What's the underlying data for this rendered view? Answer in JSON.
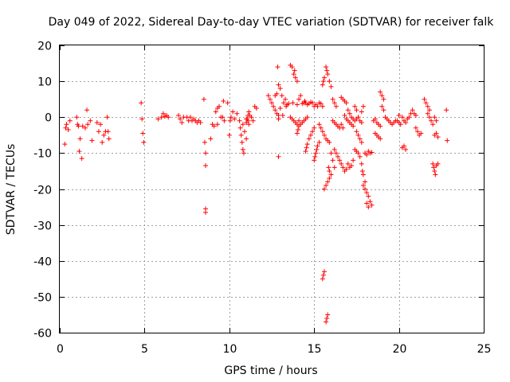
{
  "chart_data": {
    "type": "scatter",
    "title": "Day 049 of 2022, Sidereal Day-to-day VTEC variation (SDTVAR) for receiver falk",
    "xlabel": "GPS time / hours",
    "ylabel": "SDTVAR / TECUs",
    "xlim": [
      0,
      25
    ],
    "ylim": [
      -60,
      20
    ],
    "xticks": [
      0,
      5,
      10,
      15,
      20,
      25
    ],
    "yticks": [
      20,
      10,
      0,
      -10,
      -20,
      -30,
      -40,
      -50,
      -60
    ],
    "grid": true,
    "marker": "+",
    "color": "#ff0000",
    "scatter_points": [
      [
        0.3,
        -7.5
      ],
      [
        0.35,
        -3
      ],
      [
        0.4,
        -2
      ],
      [
        0.5,
        -3.5
      ],
      [
        0.6,
        -1
      ],
      [
        1.0,
        0
      ],
      [
        1.05,
        -2
      ],
      [
        1.1,
        -2.5
      ],
      [
        1.15,
        -9.5
      ],
      [
        1.2,
        -6
      ],
      [
        1.3,
        -11.5
      ],
      [
        1.35,
        -2.5
      ],
      [
        1.5,
        -3
      ],
      [
        1.6,
        2
      ],
      [
        1.65,
        -2
      ],
      [
        1.8,
        -1
      ],
      [
        1.9,
        -6.5
      ],
      [
        2.2,
        -1.5
      ],
      [
        2.3,
        -4
      ],
      [
        2.4,
        -2
      ],
      [
        2.5,
        -7
      ],
      [
        2.6,
        -5
      ],
      [
        2.7,
        -4
      ],
      [
        2.8,
        0
      ],
      [
        2.85,
        -4
      ],
      [
        2.9,
        -6
      ],
      [
        4.8,
        4
      ],
      [
        4.85,
        -0.5
      ],
      [
        4.9,
        -4.5
      ],
      [
        4.95,
        -7
      ],
      [
        5.8,
        -0.5
      ],
      [
        6.0,
        0
      ],
      [
        6.1,
        1
      ],
      [
        6.2,
        0.2
      ],
      [
        6.3,
        0.5
      ],
      [
        6.4,
        0
      ],
      [
        7.0,
        0.5
      ],
      [
        7.1,
        -0.5
      ],
      [
        7.2,
        -1.5
      ],
      [
        7.3,
        0
      ],
      [
        7.5,
        0
      ],
      [
        7.6,
        -1
      ],
      [
        7.7,
        0
      ],
      [
        7.8,
        -1
      ],
      [
        7.9,
        -0.5
      ],
      [
        8.0,
        -1
      ],
      [
        8.1,
        -1.5
      ],
      [
        8.2,
        -1
      ],
      [
        8.3,
        -1.5
      ],
      [
        8.5,
        5
      ],
      [
        8.55,
        -7
      ],
      [
        8.6,
        -10
      ],
      [
        8.6,
        -13.5
      ],
      [
        8.6,
        -25.5
      ],
      [
        8.6,
        -26.5
      ],
      [
        8.9,
        -6
      ],
      [
        9.0,
        -2
      ],
      [
        9.1,
        -2.5
      ],
      [
        9.2,
        1.5
      ],
      [
        9.3,
        2.5
      ],
      [
        9.3,
        -2
      ],
      [
        9.4,
        3
      ],
      [
        9.5,
        0
      ],
      [
        9.6,
        0
      ],
      [
        9.65,
        4.5
      ],
      [
        9.7,
        -1
      ],
      [
        9.9,
        4
      ],
      [
        10.0,
        -5
      ],
      [
        10.05,
        -1
      ],
      [
        10.1,
        0
      ],
      [
        10.2,
        1.5
      ],
      [
        10.3,
        -0.5
      ],
      [
        10.45,
        1
      ],
      [
        10.6,
        -1
      ],
      [
        10.65,
        -3
      ],
      [
        10.7,
        -5
      ],
      [
        10.75,
        -7
      ],
      [
        10.8,
        -9
      ],
      [
        10.85,
        -10
      ],
      [
        10.8,
        -2
      ],
      [
        10.9,
        -4
      ],
      [
        11.0,
        -6
      ],
      [
        11.0,
        -0.5
      ],
      [
        11.1,
        -1
      ],
      [
        11.15,
        -2
      ],
      [
        11.2,
        0.5
      ],
      [
        11.3,
        0
      ],
      [
        11.4,
        -1
      ],
      [
        11.5,
        3
      ],
      [
        11.6,
        2.5
      ],
      [
        11.0,
        -1.5
      ],
      [
        11.05,
        -0.5
      ],
      [
        11.1,
        0.5
      ],
      [
        11.15,
        1.5
      ],
      [
        12.3,
        6
      ],
      [
        12.4,
        5
      ],
      [
        12.5,
        4
      ],
      [
        12.6,
        3
      ],
      [
        12.7,
        2
      ],
      [
        12.8,
        1
      ],
      [
        12.9,
        -0.5
      ],
      [
        12.9,
        0.5
      ],
      [
        12.9,
        -11
      ],
      [
        12.7,
        6
      ],
      [
        12.8,
        6.5
      ],
      [
        12.85,
        14
      ],
      [
        12.9,
        9
      ],
      [
        13.0,
        8
      ],
      [
        13.0,
        2.5
      ],
      [
        13.1,
        6
      ],
      [
        13.15,
        0.5
      ],
      [
        13.2,
        4
      ],
      [
        13.3,
        5
      ],
      [
        13.35,
        3
      ],
      [
        13.4,
        3.5
      ],
      [
        13.5,
        3.8
      ],
      [
        13.6,
        14.5
      ],
      [
        13.7,
        14
      ],
      [
        13.75,
        4
      ],
      [
        13.8,
        12
      ],
      [
        13.85,
        13
      ],
      [
        13.9,
        11
      ],
      [
        14.0,
        10
      ],
      [
        14.0,
        3.5
      ],
      [
        14.1,
        5
      ],
      [
        14.2,
        6
      ],
      [
        14.3,
        3.8
      ],
      [
        14.4,
        4
      ],
      [
        14.45,
        4.5
      ],
      [
        14.5,
        4
      ],
      [
        14.6,
        3.5
      ],
      [
        14.7,
        3.8
      ],
      [
        14.8,
        4.2
      ],
      [
        14.9,
        4
      ],
      [
        15.0,
        3
      ],
      [
        15.1,
        3.5
      ],
      [
        15.2,
        3
      ],
      [
        15.3,
        4
      ],
      [
        15.4,
        3.8
      ],
      [
        15.5,
        3
      ],
      [
        15.3,
        -2
      ],
      [
        15.4,
        -3
      ],
      [
        15.5,
        -4
      ],
      [
        15.6,
        -5
      ],
      [
        15.7,
        -6
      ],
      [
        15.8,
        -6.5
      ],
      [
        15.9,
        -7
      ],
      [
        15.85,
        -14
      ],
      [
        15.9,
        -15
      ],
      [
        16.0,
        -16
      ],
      [
        15.6,
        -20
      ],
      [
        15.7,
        -19
      ],
      [
        15.8,
        -18
      ],
      [
        15.9,
        -17
      ],
      [
        15.5,
        -45
      ],
      [
        15.55,
        -44
      ],
      [
        15.6,
        -43
      ],
      [
        15.7,
        -57
      ],
      [
        15.75,
        -56
      ],
      [
        15.8,
        -55
      ],
      [
        15.5,
        9
      ],
      [
        15.55,
        10
      ],
      [
        15.6,
        11
      ],
      [
        15.7,
        14
      ],
      [
        15.75,
        13
      ],
      [
        15.8,
        12
      ],
      [
        15.9,
        10
      ],
      [
        16.0,
        8.5
      ],
      [
        14.0,
        -4.5
      ],
      [
        14.05,
        -3.5
      ],
      [
        14.1,
        -2.5
      ],
      [
        14.2,
        -2
      ],
      [
        14.3,
        -1.5
      ],
      [
        14.4,
        -1
      ],
      [
        14.5,
        -0.5
      ],
      [
        14.6,
        0
      ],
      [
        14.5,
        -9.5
      ],
      [
        14.55,
        -8.5
      ],
      [
        14.6,
        -7.5
      ],
      [
        14.7,
        -6
      ],
      [
        14.8,
        -5
      ],
      [
        14.9,
        -4
      ],
      [
        15.0,
        -3
      ],
      [
        15.0,
        -12
      ],
      [
        15.05,
        -11
      ],
      [
        15.1,
        -10
      ],
      [
        15.15,
        -9
      ],
      [
        15.2,
        -8
      ],
      [
        15.3,
        -7
      ],
      [
        13.6,
        0
      ],
      [
        13.7,
        -0.5
      ],
      [
        13.8,
        -1
      ],
      [
        13.9,
        -1.5
      ],
      [
        14.0,
        -2
      ],
      [
        14.1,
        -1
      ],
      [
        16.1,
        5
      ],
      [
        16.2,
        4
      ],
      [
        16.3,
        3
      ],
      [
        16.1,
        -1
      ],
      [
        16.2,
        -1.5
      ],
      [
        16.3,
        -2
      ],
      [
        16.4,
        -2.5
      ],
      [
        16.5,
        -3
      ],
      [
        16.6,
        -2
      ],
      [
        16.7,
        -3
      ],
      [
        16.2,
        -9
      ],
      [
        16.3,
        -10
      ],
      [
        16.4,
        -11
      ],
      [
        16.5,
        -12
      ],
      [
        16.6,
        -13
      ],
      [
        16.7,
        -14
      ],
      [
        16.8,
        -15
      ],
      [
        16.9,
        -14.5
      ],
      [
        17.0,
        -13
      ],
      [
        17.1,
        -14
      ],
      [
        17.2,
        -13.5
      ],
      [
        17.3,
        -12
      ],
      [
        16.0,
        -10
      ],
      [
        16.1,
        -12
      ],
      [
        16.2,
        -14
      ],
      [
        16.6,
        5.5
      ],
      [
        16.7,
        5
      ],
      [
        16.8,
        4.5
      ],
      [
        16.9,
        4
      ],
      [
        16.8,
        0.5
      ],
      [
        16.9,
        -0.5
      ],
      [
        17.0,
        -1
      ],
      [
        17.1,
        -1.5
      ],
      [
        17.2,
        -2
      ],
      [
        17.3,
        -2.5
      ],
      [
        17.4,
        -1
      ],
      [
        17.5,
        -0.5
      ],
      [
        17.6,
        0
      ],
      [
        17.7,
        -1
      ],
      [
        17.8,
        -1.5
      ],
      [
        17.5,
        -4
      ],
      [
        17.6,
        -5
      ],
      [
        17.7,
        -6
      ],
      [
        17.8,
        -7
      ],
      [
        17.4,
        -9
      ],
      [
        17.5,
        -9.5
      ],
      [
        17.6,
        -10
      ],
      [
        17.7,
        -11
      ],
      [
        17.8,
        -13
      ],
      [
        17.85,
        -15
      ],
      [
        17.9,
        -16
      ],
      [
        18.0,
        -18
      ],
      [
        18.0,
        -20
      ],
      [
        18.1,
        -21
      ],
      [
        18.2,
        -22
      ],
      [
        17.9,
        -19
      ],
      [
        18.0,
        -10
      ],
      [
        18.1,
        -10.5
      ],
      [
        18.2,
        -9.5
      ],
      [
        18.3,
        -10
      ],
      [
        18.4,
        -9.8
      ],
      [
        18.1,
        -24
      ],
      [
        18.2,
        -25
      ],
      [
        18.3,
        -23.5
      ],
      [
        18.4,
        -24.5
      ],
      [
        17.0,
        2
      ],
      [
        17.1,
        1
      ],
      [
        17.2,
        0
      ],
      [
        17.3,
        -0.5
      ],
      [
        17.4,
        3
      ],
      [
        17.5,
        2
      ],
      [
        17.8,
        1.5
      ],
      [
        17.9,
        3
      ],
      [
        18.5,
        -1
      ],
      [
        18.6,
        -0.5
      ],
      [
        18.7,
        -1.5
      ],
      [
        18.8,
        -2
      ],
      [
        18.9,
        -2.5
      ],
      [
        18.6,
        -4.5
      ],
      [
        18.7,
        -5
      ],
      [
        18.8,
        -5.5
      ],
      [
        18.9,
        -6
      ],
      [
        18.9,
        7
      ],
      [
        19.0,
        6
      ],
      [
        19.1,
        5
      ],
      [
        19.0,
        3
      ],
      [
        19.1,
        2
      ],
      [
        19.2,
        0
      ],
      [
        19.3,
        -0.5
      ],
      [
        19.4,
        -1
      ],
      [
        19.5,
        -1.5
      ],
      [
        19.6,
        -2
      ],
      [
        19.7,
        -1.5
      ],
      [
        19.8,
        -1
      ],
      [
        19.9,
        -1
      ],
      [
        20.0,
        -1.5
      ],
      [
        20.1,
        -2
      ],
      [
        20.0,
        0.5
      ],
      [
        20.2,
        0
      ],
      [
        20.3,
        -1
      ],
      [
        20.4,
        -1.5
      ],
      [
        20.5,
        -0.5
      ],
      [
        20.6,
        0
      ],
      [
        20.7,
        1
      ],
      [
        20.8,
        2
      ],
      [
        20.9,
        1
      ],
      [
        21.0,
        0.5
      ],
      [
        20.2,
        -8.5
      ],
      [
        20.3,
        -8
      ],
      [
        20.4,
        -9
      ],
      [
        21.0,
        -3
      ],
      [
        21.1,
        -4
      ],
      [
        21.2,
        -5
      ],
      [
        21.3,
        -4.5
      ],
      [
        21.5,
        5
      ],
      [
        21.6,
        4
      ],
      [
        21.7,
        3
      ],
      [
        21.8,
        2
      ],
      [
        21.7,
        1
      ],
      [
        21.8,
        0
      ],
      [
        21.9,
        -1
      ],
      [
        22.0,
        -2
      ],
      [
        22.1,
        0
      ],
      [
        22.2,
        -1
      ],
      [
        22.0,
        -13
      ],
      [
        22.05,
        -14
      ],
      [
        22.1,
        -15
      ],
      [
        22.15,
        -16
      ],
      [
        22.2,
        -13.5
      ],
      [
        22.3,
        -13
      ],
      [
        22.1,
        -5
      ],
      [
        22.2,
        -4.5
      ],
      [
        22.3,
        -5.5
      ],
      [
        22.8,
        2
      ],
      [
        22.85,
        -6.5
      ]
    ]
  }
}
